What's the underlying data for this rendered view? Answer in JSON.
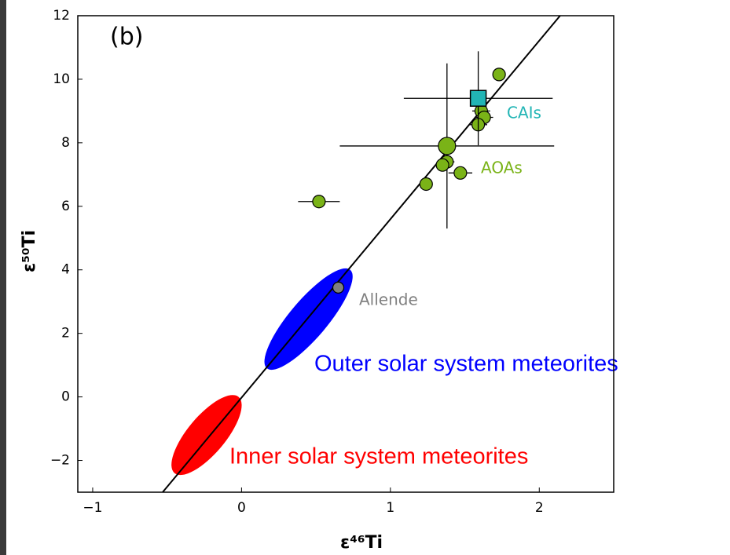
{
  "chart_data": {
    "type": "scatter",
    "panel_label": "(b)",
    "x_label": "ε⁴⁶Ti",
    "y_label": "ε⁵⁰Ti",
    "xlim": [
      -1.1,
      2.5
    ],
    "ylim": [
      -3,
      12
    ],
    "xticks": [
      {
        "value": -1,
        "label": "−1"
      },
      0,
      1,
      2
    ],
    "yticks": [
      {
        "value": -2,
        "label": "−2"
      },
      0,
      2,
      4,
      6,
      8,
      10,
      12
    ],
    "fit_line": {
      "x": [
        -0.53,
        2.14
      ],
      "y": [
        -3,
        12
      ],
      "color": "#000000"
    },
    "regions": [
      {
        "label": "Inner solar system meteorites",
        "color": "#ff0000",
        "x_range": [
          -0.45,
          -0.02
        ],
        "y_range": [
          -2.4,
          0
        ]
      },
      {
        "label": "Outer solar system meteorites",
        "color": "#0000ff",
        "x_range": [
          0.17,
          0.73
        ],
        "y_range": [
          0.9,
          4.0
        ]
      }
    ],
    "series": [
      {
        "name": "AOAs",
        "color": "#7ab317",
        "marker": "circle",
        "x": [
          1.73,
          1.61,
          1.63,
          1.59,
          1.38,
          1.38,
          1.35,
          1.47,
          1.24,
          0.52
        ],
        "values": [
          10.15,
          9.0,
          8.8,
          8.57,
          7.9,
          7.4,
          7.3,
          7.05,
          6.7,
          6.15
        ],
        "xerr": [
          null,
          0.06,
          0.06,
          0.06,
          0.72,
          0.05,
          null,
          0.08,
          null,
          0.14
        ],
        "yerr": [
          null,
          null,
          null,
          null,
          2.6,
          null,
          null,
          null,
          null,
          null
        ],
        "sizes": [
          8,
          8,
          8,
          8,
          11,
          8,
          8,
          8,
          8,
          8
        ]
      },
      {
        "name": "CAIs",
        "color": "#22b5b5",
        "marker": "square",
        "x": [
          1.59
        ],
        "values": [
          9.4
        ],
        "xerr": [
          0.5
        ],
        "yerr": [
          1.48
        ],
        "sizes": [
          10
        ]
      },
      {
        "name": "Allende",
        "color": "#808080",
        "marker": "circle",
        "x": [
          0.65
        ],
        "values": [
          3.44
        ],
        "xerr": [
          null
        ],
        "yerr": [
          null
        ],
        "sizes": [
          7
        ]
      }
    ]
  }
}
